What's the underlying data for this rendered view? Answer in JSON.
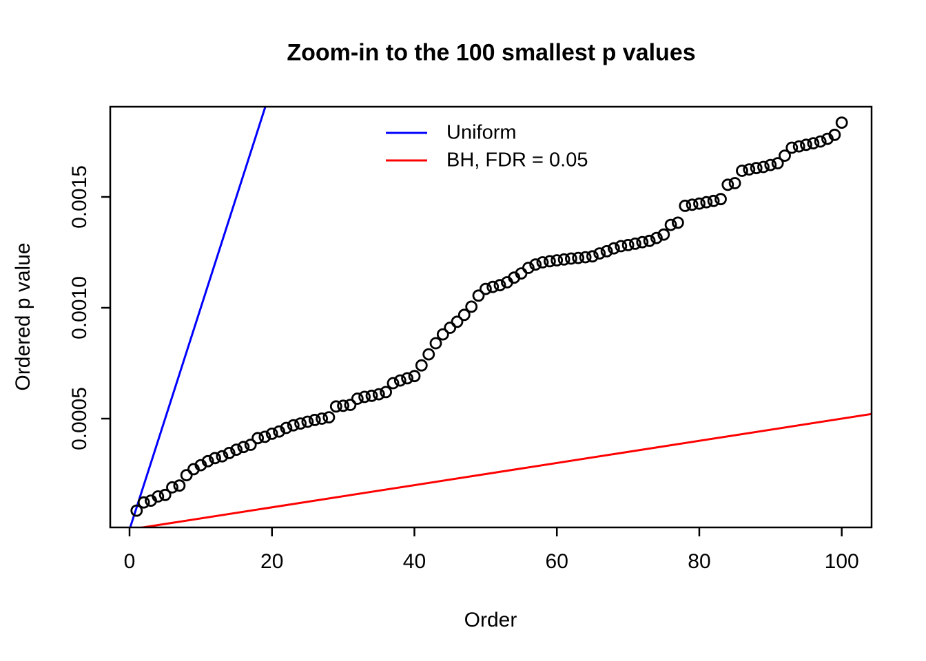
{
  "chart_data": {
    "type": "scatter",
    "title": "Zoom-in to the 100 smallest p values",
    "xlabel": "Order",
    "ylabel": "Ordered p value",
    "xlim": [
      0,
      104
    ],
    "ylim": [
      0,
      0.0019
    ],
    "grid": false,
    "x_ticks": [
      0,
      20,
      40,
      60,
      80,
      100
    ],
    "x_tick_labels": [
      "0",
      "20",
      "40",
      "60",
      "80",
      "100"
    ],
    "y_ticks": [
      0.0005,
      0.001,
      0.0015
    ],
    "y_tick_labels": [
      "0.0005",
      "0.0010",
      "0.0015"
    ],
    "point_color": "#000000",
    "legend_position": "top-center-inside",
    "lines": [
      {
        "name": "Uniform",
        "color": "#0000ff",
        "slope_per_order": 0.0001,
        "intercept": 0
      },
      {
        "name": "BH, FDR = 0.05",
        "color": "#ff0000",
        "slope_per_order": 5e-06,
        "intercept": 0
      }
    ],
    "points": {
      "x": [
        1,
        2,
        3,
        4,
        5,
        6,
        7,
        8,
        9,
        10,
        11,
        12,
        13,
        14,
        15,
        16,
        17,
        18,
        19,
        20,
        21,
        22,
        23,
        24,
        25,
        26,
        27,
        28,
        29,
        30,
        31,
        32,
        33,
        34,
        35,
        36,
        37,
        38,
        39,
        40,
        41,
        42,
        43,
        44,
        45,
        46,
        47,
        48,
        49,
        50,
        51,
        52,
        53,
        54,
        55,
        56,
        57,
        58,
        59,
        60,
        61,
        62,
        63,
        64,
        65,
        66,
        67,
        68,
        69,
        70,
        71,
        72,
        73,
        74,
        75,
        76,
        77,
        78,
        79,
        80,
        81,
        82,
        83,
        84,
        85,
        86,
        87,
        88,
        89,
        90,
        91,
        92,
        93,
        94,
        95,
        96,
        97,
        98,
        99,
        100
      ],
      "y": [
        8.5e-05,
        0.000122,
        0.00013,
        0.000149,
        0.000156,
        0.00019,
        0.000198,
        0.000245,
        0.000272,
        0.00029,
        0.000308,
        0.000322,
        0.00033,
        0.000345,
        0.00036,
        0.000372,
        0.000382,
        0.000412,
        0.000418,
        0.000432,
        0.000442,
        0.000458,
        0.00047,
        0.000478,
        0.000486,
        0.000494,
        0.0005,
        0.000506,
        0.000555,
        0.000558,
        0.000562,
        0.00059,
        0.000598,
        0.000603,
        0.00061,
        0.00062,
        0.00066,
        0.000672,
        0.000682,
        0.000692,
        0.00074,
        0.00079,
        0.00084,
        0.00088,
        0.00091,
        0.000937,
        0.000968,
        0.001005,
        0.001055,
        0.001085,
        0.001094,
        0.001102,
        0.001115,
        0.001136,
        0.001155,
        0.00118,
        0.001195,
        0.001205,
        0.00121,
        0.001214,
        0.001218,
        0.001222,
        0.001225,
        0.001228,
        0.001232,
        0.001245,
        0.001255,
        0.001268,
        0.001278,
        0.001283,
        0.001289,
        0.001296,
        0.001302,
        0.001315,
        0.00133,
        0.001374,
        0.001384,
        0.00146,
        0.001465,
        0.00147,
        0.001476,
        0.001482,
        0.00149,
        0.001555,
        0.001562,
        0.001618,
        0.001624,
        0.00163,
        0.001635,
        0.001644,
        0.001652,
        0.001686,
        0.001722,
        0.001728,
        0.001735,
        0.001742,
        0.00175,
        0.001762,
        0.00178,
        0.001835
      ]
    }
  }
}
